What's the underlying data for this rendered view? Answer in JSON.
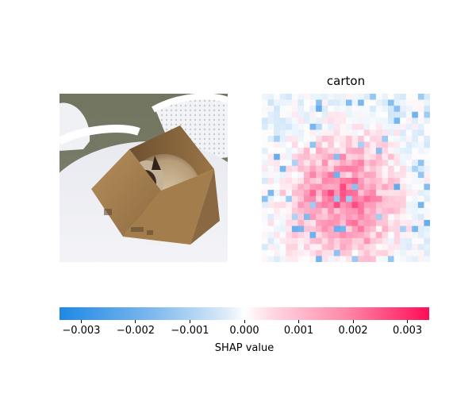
{
  "figure": {
    "title": "carton"
  },
  "chart_data": {
    "type": "heatmap",
    "title": "carton",
    "xlabel": "SHAP value",
    "ylabel": "",
    "colorbar": {
      "label": "SHAP value",
      "min": -0.0034,
      "max": 0.0034,
      "ticks": [
        -0.003,
        -0.002,
        -0.001,
        0.0,
        0.001,
        0.002,
        0.003
      ],
      "tick_labels": [
        "−0.003",
        "−0.002",
        "−0.001",
        "0.000",
        "0.001",
        "0.002",
        "0.003"
      ],
      "colors": {
        "negative": "#1e88e5",
        "neutral": "#ffffff",
        "positive": "#ff0d57"
      }
    },
    "input_image": {
      "content": "photo of a Siamese cat sitting inside a cardboard carton on a white table"
    },
    "shap_map": {
      "rows": 28,
      "cols": 28,
      "description": "positive SHAP values concentrated on the carton/cat region, small scattered negative values elsewhere"
    }
  }
}
